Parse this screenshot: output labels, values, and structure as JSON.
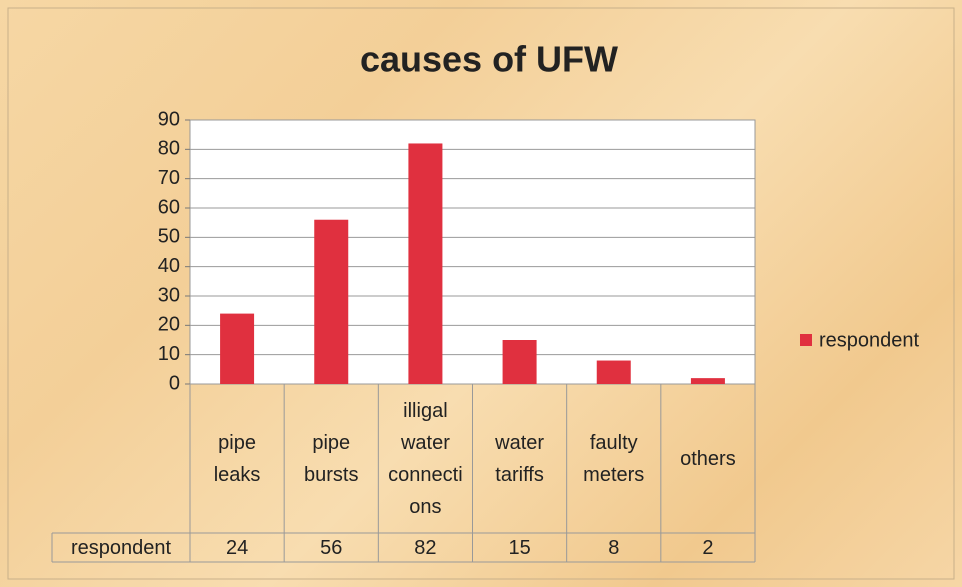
{
  "chart_data": {
    "type": "bar",
    "title": "causes of UFW",
    "categories": [
      "pipe leaks",
      "pipe bursts",
      "illigal water connections",
      "water tariffs",
      "faulty meters",
      "others"
    ],
    "series": [
      {
        "name": "respondent",
        "color": "#e0303f",
        "values": [
          24,
          56,
          82,
          15,
          8,
          2
        ]
      }
    ],
    "ylim": [
      0,
      90
    ],
    "yticks": [
      0,
      10,
      20,
      30,
      40,
      50,
      60,
      70,
      80,
      90
    ],
    "grid": true,
    "legend": "right",
    "data_table": true
  }
}
